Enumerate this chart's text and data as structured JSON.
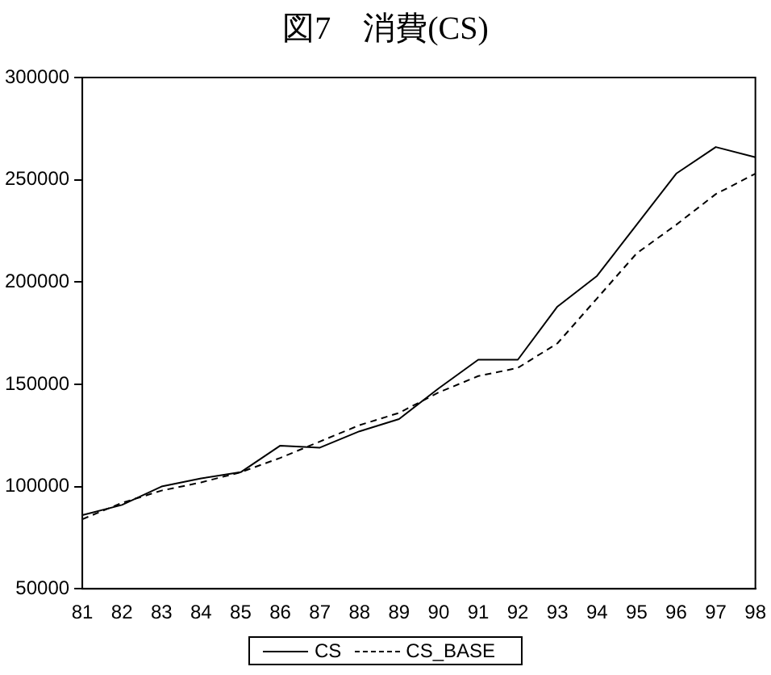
{
  "chart_data": {
    "type": "line",
    "title": "図7　消費(CS)",
    "categories": [
      "81",
      "82",
      "83",
      "84",
      "85",
      "86",
      "87",
      "88",
      "89",
      "90",
      "91",
      "92",
      "93",
      "94",
      "95",
      "96",
      "97",
      "98"
    ],
    "series": [
      {
        "name": "CS",
        "color": "#000000",
        "line_style": "solid",
        "values": [
          86000,
          91000,
          100000,
          104000,
          107000,
          120000,
          119000,
          127000,
          133000,
          148000,
          162000,
          162000,
          188000,
          203000,
          228000,
          253000,
          266000,
          261000
        ]
      },
      {
        "name": "CS_BASE",
        "color": "#000000",
        "line_style": "dashed",
        "values": [
          84000,
          92000,
          98000,
          102000,
          107000,
          114000,
          122000,
          130000,
          136000,
          146000,
          154000,
          158000,
          170000,
          192000,
          214000,
          228000,
          243000,
          253000
        ]
      }
    ],
    "ylim": [
      50000,
      300000
    ],
    "yticks": [
      50000,
      100000,
      150000,
      200000,
      250000,
      300000
    ],
    "grid": false,
    "legend": "bottom",
    "marker": "none"
  }
}
